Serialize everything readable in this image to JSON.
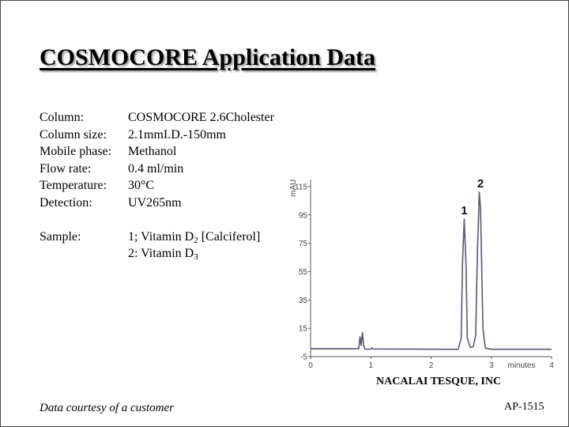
{
  "title": "COSMOCORE Application Data",
  "specs": [
    {
      "label": "Column:",
      "value": "COSMOCORE 2.6Cholester"
    },
    {
      "label": "Column size:",
      "value": "2.1mmI.D.-150mm"
    },
    {
      "label": "Mobile phase:",
      "value": "Methanol"
    },
    {
      "label": "Flow rate:",
      "value": "0.4 ml/min"
    },
    {
      "label": "Temperature:",
      "value": "30°C"
    },
    {
      "label": "Detection:",
      "value": "UV265nm"
    }
  ],
  "sample": {
    "label": "Sample:",
    "line1_prefix": "1; Vitamin D",
    "line1_sub": "2",
    "line1_suffix": " [Calciferol]",
    "line2_prefix": "2: Vitamin D",
    "line2_sub": "3"
  },
  "company": "NACALAI TESQUE, INC",
  "courtesy": "Data courtesy of a customer",
  "code": "AP-1515",
  "chart_data": {
    "type": "line",
    "ylabel": "mAU",
    "xlabel": "minutes",
    "xlim": [
      0,
      4
    ],
    "ylim": [
      -5,
      120
    ],
    "xticks": [
      0,
      1,
      2,
      3,
      4
    ],
    "yticks": [
      -5,
      15,
      35,
      55,
      75,
      95,
      115
    ],
    "line_color": "#5a5670",
    "peaks_labels": [
      {
        "label": "1",
        "x": 2.55,
        "y": 92
      },
      {
        "label": "2",
        "x": 2.82,
        "y": 111
      }
    ],
    "series": [
      {
        "x": [
          0,
          0.8,
          0.82,
          0.84,
          0.86,
          0.88,
          0.9,
          0.92,
          1.0,
          1.02,
          1.04,
          2.3,
          2.45,
          2.5,
          2.52,
          2.55,
          2.58,
          2.6,
          2.65,
          2.7,
          2.74,
          2.77,
          2.8,
          2.82,
          2.84,
          2.86,
          2.9,
          3.0,
          4.0
        ],
        "y": [
          0.5,
          0.5,
          9,
          3,
          12,
          3,
          0.5,
          0.3,
          0.3,
          1.2,
          0.4,
          0.2,
          0.2,
          8,
          60,
          92,
          60,
          8,
          1.5,
          2,
          10,
          70,
          111,
          100,
          60,
          15,
          1,
          0.2,
          0.2
        ]
      }
    ]
  }
}
